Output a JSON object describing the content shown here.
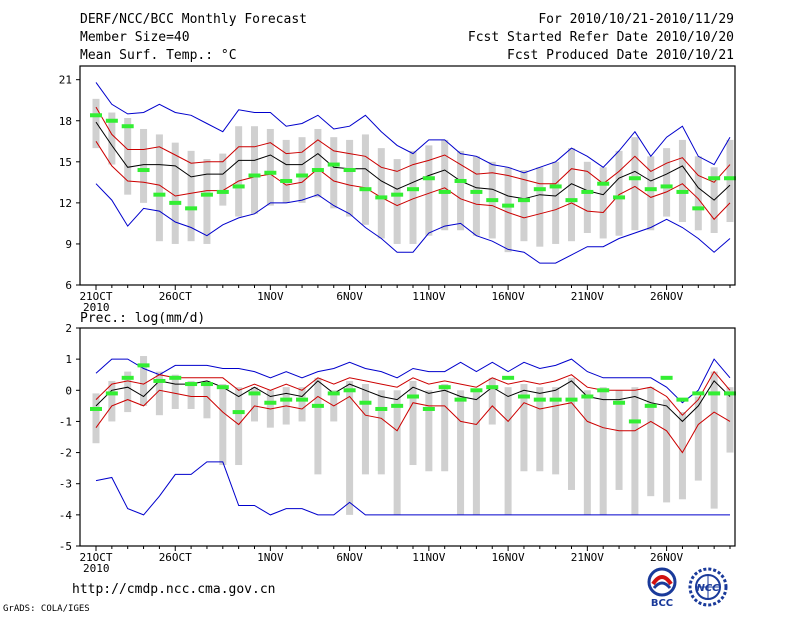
{
  "header": {
    "title": "DERF/NCC/BCC Monthly Forecast",
    "member_size": "Member Size=40",
    "variable": "Mean Surf. Temp.: °C",
    "period": "For 2010/10/21-2010/11/29",
    "started": "Fcst Started Refer Date 2010/10/20",
    "produced": "Fcst Produced Date 2010/10/21"
  },
  "footer": {
    "url": "http://cmdp.ncc.cma.gov.cn",
    "credit": "GrADS: COLA/IGES",
    "logo_bcc": "BCC",
    "logo_ncc": "NCC"
  },
  "colors": {
    "max_min": "#0000cc",
    "spread": "#cc0000",
    "mean": "#000000",
    "member": "#33ee33",
    "bar": "#d0d0d0"
  },
  "chart_data": [
    {
      "type": "line",
      "title": "Mean Surf. Temp.: °C",
      "x_ticks": [
        "21OCT",
        "26OCT",
        "1NOV",
        "6NOV",
        "11NOV",
        "16NOV",
        "21NOV",
        "26NOV"
      ],
      "x_year": "2010",
      "ylim": [
        6,
        22
      ],
      "y_ticks": [
        "6",
        "9",
        "12",
        "15",
        "18",
        "21"
      ],
      "series": [
        {
          "name": "ensemble-max",
          "values": [
            20.8,
            19.2,
            18.5,
            18.6,
            19.2,
            18.6,
            18.4,
            17.8,
            17.2,
            18.8,
            18.6,
            18.6,
            17.6,
            17.8,
            18.4,
            17.4,
            17.6,
            18.4,
            17.2,
            16.2,
            15.6,
            16.6,
            16.6,
            15.6,
            15.4,
            14.8,
            14.6,
            14.2,
            14.6,
            15.0,
            16.0,
            15.4,
            14.6,
            15.8,
            17.2,
            15.4,
            16.8,
            17.6,
            15.4,
            14.8,
            16.8
          ]
        },
        {
          "name": "mean-plus-sd",
          "values": [
            19.0,
            17.0,
            15.9,
            15.9,
            16.1,
            15.5,
            14.9,
            15.0,
            15.0,
            16.1,
            16.1,
            16.4,
            15.6,
            15.7,
            16.6,
            15.8,
            15.6,
            15.4,
            14.6,
            14.3,
            14.8,
            15.1,
            15.5,
            14.8,
            14.1,
            14.2,
            14.0,
            13.7,
            13.4,
            13.4,
            14.5,
            14.3,
            13.4,
            14.3,
            15.4,
            14.3,
            14.9,
            15.3,
            14.0,
            13.5,
            14.8
          ]
        },
        {
          "name": "ensemble-mean",
          "values": [
            17.9,
            16.2,
            14.6,
            14.8,
            14.8,
            14.7,
            13.9,
            14.1,
            14.1,
            15.1,
            15.1,
            15.5,
            14.8,
            14.8,
            15.6,
            14.6,
            14.5,
            14.5,
            13.6,
            13.0,
            13.5,
            14.0,
            14.4,
            13.6,
            13.1,
            13.0,
            12.5,
            12.3,
            12.6,
            12.5,
            13.4,
            12.9,
            12.6,
            13.8,
            14.3,
            13.6,
            14.1,
            14.7,
            13.1,
            12.2,
            13.3
          ]
        },
        {
          "name": "mean-minus-sd",
          "values": [
            16.5,
            14.7,
            13.6,
            13.5,
            13.3,
            12.5,
            12.7,
            12.9,
            12.9,
            13.6,
            13.9,
            14.1,
            13.3,
            13.5,
            14.5,
            13.6,
            13.3,
            13.1,
            12.4,
            11.8,
            12.3,
            12.7,
            13.1,
            12.3,
            11.9,
            11.8,
            11.3,
            10.9,
            11.2,
            11.5,
            12.0,
            11.4,
            11.3,
            12.6,
            13.2,
            12.4,
            12.8,
            13.4,
            12.3,
            10.8,
            12.0
          ]
        },
        {
          "name": "ensemble-min",
          "values": [
            13.4,
            12.2,
            10.3,
            11.6,
            11.4,
            10.6,
            10.2,
            9.6,
            10.4,
            10.9,
            11.2,
            12.0,
            12.0,
            12.2,
            12.6,
            11.8,
            11.2,
            10.2,
            9.4,
            8.4,
            8.4,
            9.8,
            10.3,
            10.5,
            9.6,
            9.2,
            8.6,
            8.4,
            7.6,
            7.6,
            8.2,
            8.8,
            8.8,
            9.4,
            9.8,
            10.2,
            10.8,
            10.2,
            9.4,
            8.4,
            9.4
          ]
        },
        {
          "name": "bar-top",
          "values": [
            19.6,
            18.6,
            18.2,
            17.4,
            17.0,
            16.4,
            15.8,
            15.2,
            15.6,
            17.6,
            17.6,
            17.4,
            16.6,
            16.8,
            17.4,
            16.8,
            16.6,
            17.0,
            16.0,
            15.2,
            15.8,
            16.2,
            16.6,
            15.8,
            15.4,
            15.0,
            14.6,
            14.4,
            14.6,
            15.0,
            16.0,
            15.0,
            14.6,
            15.8,
            16.8,
            15.4,
            16.0,
            16.6,
            15.4,
            14.6,
            16.6
          ]
        },
        {
          "name": "bar-bottom",
          "values": [
            16.0,
            14.8,
            12.6,
            12.0,
            9.2,
            9.0,
            9.2,
            9.0,
            11.8,
            11.0,
            11.2,
            11.8,
            12.0,
            12.0,
            12.4,
            11.6,
            11.0,
            10.4,
            9.4,
            9.0,
            9.0,
            9.6,
            10.0,
            10.0,
            9.6,
            9.4,
            8.4,
            9.2,
            8.8,
            9.0,
            9.2,
            9.8,
            9.4,
            9.6,
            10.0,
            10.0,
            11.0,
            10.6,
            10.0,
            9.8,
            10.6
          ]
        },
        {
          "name": "green-marker",
          "values": [
            18.4,
            18.0,
            17.6,
            14.4,
            12.6,
            12.0,
            11.6,
            12.6,
            12.8,
            13.2,
            14.0,
            14.2,
            13.6,
            14.0,
            14.4,
            14.8,
            14.4,
            13.0,
            12.4,
            12.6,
            13.0,
            13.8,
            12.8,
            13.6,
            12.8,
            12.2,
            11.8,
            12.2,
            13.0,
            13.2,
            12.2,
            12.8,
            13.4,
            12.4,
            13.8,
            13.0,
            13.2,
            12.8,
            11.6,
            13.8,
            13.8
          ]
        }
      ]
    },
    {
      "type": "line",
      "title": "Prec.: log(mm/d)",
      "x_ticks": [
        "21OCT",
        "26OCT",
        "1NOV",
        "6NOV",
        "11NOV",
        "16NOV",
        "21NOV",
        "26NOV"
      ],
      "x_year": "2010",
      "ylim": [
        -5,
        2
      ],
      "y_ticks": [
        "-5",
        "-4",
        "-3",
        "-2",
        "-1",
        "0",
        "1",
        "2"
      ],
      "series": [
        {
          "name": "ensemble-max",
          "values": [
            0.55,
            1.0,
            1.0,
            0.7,
            0.5,
            0.8,
            0.8,
            0.8,
            0.7,
            0.7,
            0.6,
            0.4,
            0.6,
            0.4,
            0.6,
            0.7,
            0.9,
            0.7,
            0.6,
            0.4,
            0.7,
            0.6,
            0.6,
            0.9,
            0.6,
            0.9,
            0.6,
            0.9,
            0.7,
            0.8,
            1.0,
            0.6,
            0.4,
            0.4,
            0.4,
            0.4,
            0.1,
            -0.4,
            0.0,
            1.0,
            0.4
          ]
        },
        {
          "name": "mean-plus-sd",
          "values": [
            -0.3,
            0.2,
            0.3,
            0.2,
            0.5,
            0.4,
            0.4,
            0.4,
            0.4,
            0.0,
            0.2,
            0.0,
            0.2,
            0.0,
            0.4,
            0.2,
            0.4,
            0.3,
            0.2,
            0.1,
            0.4,
            0.2,
            0.3,
            0.2,
            0.1,
            0.4,
            0.2,
            0.3,
            0.2,
            0.3,
            0.5,
            0.1,
            0.0,
            0.0,
            0.0,
            0.1,
            -0.2,
            -0.8,
            -0.3,
            0.6,
            0.0
          ]
        },
        {
          "name": "ensemble-mean",
          "values": [
            -0.5,
            0.0,
            0.1,
            -0.2,
            0.3,
            0.2,
            0.2,
            0.3,
            0.1,
            -0.2,
            0.1,
            -0.2,
            -0.1,
            -0.2,
            0.3,
            -0.1,
            0.2,
            0.0,
            -0.2,
            -0.3,
            0.1,
            -0.1,
            0.0,
            -0.2,
            -0.3,
            0.1,
            -0.2,
            0.0,
            -0.1,
            0.0,
            0.3,
            -0.2,
            -0.3,
            -0.3,
            -0.2,
            -0.4,
            -0.5,
            -1.0,
            -0.5,
            0.3,
            -0.2
          ]
        },
        {
          "name": "mean-minus-sd",
          "values": [
            -1.2,
            -0.5,
            -0.3,
            -0.5,
            0.0,
            -0.1,
            -0.2,
            -0.2,
            -0.7,
            -1.1,
            -0.5,
            -0.6,
            -0.5,
            -0.6,
            -0.2,
            -0.5,
            -0.2,
            -0.8,
            -0.9,
            -1.3,
            -0.4,
            -0.5,
            -0.5,
            -1.0,
            -1.1,
            -0.5,
            -1.0,
            -0.4,
            -0.6,
            -0.5,
            -0.4,
            -1.0,
            -1.2,
            -1.3,
            -1.3,
            -1.0,
            -1.3,
            -2.0,
            -1.1,
            -0.7,
            -1.0
          ]
        },
        {
          "name": "ensemble-min",
          "values": [
            -2.9,
            -2.8,
            -3.8,
            -4.0,
            -3.4,
            -2.7,
            -2.7,
            -2.3,
            -2.3,
            -3.7,
            -3.7,
            -4.0,
            -3.8,
            -3.8,
            -4.0,
            -4.0,
            -3.6,
            -4.0,
            -4.0,
            -4.0,
            -4.0,
            -4.0,
            -4.0,
            -4.0,
            -4.0,
            -4.0,
            -4.0,
            -4.0,
            -4.0,
            -4.0,
            -4.0,
            -4.0,
            -4.0,
            -4.0,
            -4.0,
            -4.0,
            -4.0,
            -4.0,
            -4.0,
            -4.0,
            -4.0
          ]
        },
        {
          "name": "bar-top",
          "values": [
            -0.1,
            0.3,
            0.6,
            1.1,
            0.6,
            0.5,
            0.3,
            0.3,
            0.2,
            0.1,
            0.1,
            0.0,
            0.1,
            0.1,
            0.4,
            0.0,
            0.3,
            0.2,
            0.0,
            0.0,
            0.3,
            0.0,
            0.2,
            0.0,
            0.0,
            0.4,
            0.1,
            0.2,
            0.1,
            0.1,
            0.4,
            0.0,
            0.1,
            0.0,
            0.1,
            0.1,
            -0.3,
            -0.7,
            -0.2,
            0.6,
            0.1
          ]
        },
        {
          "name": "bar-bottom",
          "values": [
            -1.7,
            -1.0,
            -0.7,
            -0.5,
            -0.8,
            -0.6,
            -0.6,
            -0.9,
            -2.4,
            -2.4,
            -1.0,
            -1.2,
            -1.1,
            -1.0,
            -2.7,
            -1.0,
            -4.0,
            -2.7,
            -2.7,
            -4.0,
            -2.4,
            -2.6,
            -2.6,
            -4.0,
            -4.0,
            -1.1,
            -4.0,
            -2.6,
            -2.6,
            -2.7,
            -3.2,
            -4.0,
            -4.0,
            -3.2,
            -4.0,
            -3.4,
            -3.6,
            -3.5,
            -2.9,
            -3.8,
            -2.0
          ]
        },
        {
          "name": "green-marker",
          "values": [
            -0.6,
            -0.1,
            0.4,
            0.8,
            0.3,
            0.4,
            0.2,
            0.2,
            0.1,
            -0.7,
            -0.1,
            -0.4,
            -0.3,
            -0.3,
            -0.5,
            -0.1,
            0.0,
            -0.4,
            -0.6,
            -0.5,
            -0.2,
            -0.6,
            0.1,
            -0.3,
            0.0,
            0.1,
            0.4,
            -0.2,
            -0.3,
            -0.3,
            -0.3,
            -0.2,
            0.0,
            -0.4,
            -1.0,
            -0.5,
            0.4,
            -0.3,
            -0.1,
            -0.1,
            -0.1
          ]
        }
      ]
    }
  ]
}
